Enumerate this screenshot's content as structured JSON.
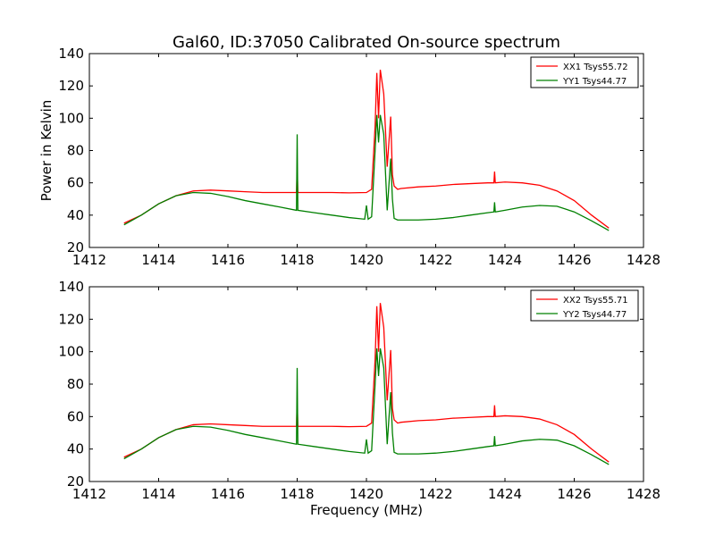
{
  "title": "Gal60, ID:37050 Calibrated On-source spectrum",
  "chart_data": [
    {
      "type": "line",
      "xlabel": "",
      "ylabel": "Power in Kelvin",
      "xlim": [
        1412,
        1428
      ],
      "ylim": [
        20,
        140
      ],
      "xticks": [
        "1412",
        "1414",
        "1416",
        "1418",
        "1420",
        "1422",
        "1424",
        "1426",
        "1428"
      ],
      "yticks": [
        "20",
        "40",
        "60",
        "80",
        "100",
        "120",
        "140"
      ],
      "legend_position": "top-right",
      "series": [
        {
          "name": "XX1 Tsys55.72",
          "color": "#ff0000",
          "points": [
            [
              1413.0,
              35
            ],
            [
              1413.5,
              40
            ],
            [
              1414.0,
              47
            ],
            [
              1414.5,
              52
            ],
            [
              1415.0,
              55
            ],
            [
              1415.5,
              55.5
            ],
            [
              1416.0,
              55
            ],
            [
              1416.5,
              54.5
            ],
            [
              1417.0,
              54
            ],
            [
              1417.5,
              54
            ],
            [
              1417.98,
              54
            ],
            [
              1418.0,
              69
            ],
            [
              1418.02,
              54
            ],
            [
              1418.5,
              54
            ],
            [
              1419.0,
              54
            ],
            [
              1419.5,
              53.8
            ],
            [
              1420.0,
              54
            ],
            [
              1420.15,
              56
            ],
            [
              1420.25,
              95
            ],
            [
              1420.3,
              128
            ],
            [
              1420.35,
              100
            ],
            [
              1420.4,
              130
            ],
            [
              1420.5,
              115
            ],
            [
              1420.6,
              70
            ],
            [
              1420.7,
              101
            ],
            [
              1420.75,
              65
            ],
            [
              1420.8,
              58
            ],
            [
              1420.9,
              56
            ],
            [
              1421.0,
              56.5
            ],
            [
              1421.5,
              57.5
            ],
            [
              1422.0,
              58
            ],
            [
              1422.5,
              59
            ],
            [
              1423.0,
              59.5
            ],
            [
              1423.5,
              60
            ],
            [
              1423.68,
              60
            ],
            [
              1423.7,
              67
            ],
            [
              1423.72,
              60
            ],
            [
              1424.0,
              60.5
            ],
            [
              1424.5,
              60
            ],
            [
              1425.0,
              58.5
            ],
            [
              1425.5,
              55
            ],
            [
              1426.0,
              49
            ],
            [
              1426.5,
              40
            ],
            [
              1427.0,
              32
            ]
          ]
        },
        {
          "name": "YY1 Tsys44.77",
          "color": "#008000",
          "points": [
            [
              1413.0,
              34
            ],
            [
              1413.5,
              40
            ],
            [
              1414.0,
              47
            ],
            [
              1414.5,
              52
            ],
            [
              1415.0,
              54
            ],
            [
              1415.5,
              53.5
            ],
            [
              1416.0,
              51.5
            ],
            [
              1416.5,
              49
            ],
            [
              1417.0,
              47
            ],
            [
              1417.5,
              45
            ],
            [
              1417.98,
              43
            ],
            [
              1418.0,
              90
            ],
            [
              1418.02,
              43
            ],
            [
              1418.5,
              41.5
            ],
            [
              1419.0,
              40
            ],
            [
              1419.5,
              38.5
            ],
            [
              1419.95,
              37.5
            ],
            [
              1420.0,
              46
            ],
            [
              1420.05,
              37.5
            ],
            [
              1420.15,
              39
            ],
            [
              1420.25,
              80
            ],
            [
              1420.3,
              102
            ],
            [
              1420.35,
              85
            ],
            [
              1420.4,
              102
            ],
            [
              1420.5,
              90
            ],
            [
              1420.6,
              43
            ],
            [
              1420.7,
              75
            ],
            [
              1420.75,
              50
            ],
            [
              1420.8,
              38
            ],
            [
              1420.9,
              37
            ],
            [
              1421.0,
              37
            ],
            [
              1421.5,
              37
            ],
            [
              1422.0,
              37.5
            ],
            [
              1422.5,
              38.5
            ],
            [
              1423.0,
              40
            ],
            [
              1423.5,
              41.5
            ],
            [
              1423.68,
              42
            ],
            [
              1423.7,
              48
            ],
            [
              1423.72,
              42
            ],
            [
              1424.0,
              43
            ],
            [
              1424.5,
              45
            ],
            [
              1425.0,
              46
            ],
            [
              1425.5,
              45.5
            ],
            [
              1426.0,
              42
            ],
            [
              1426.5,
              36.5
            ],
            [
              1427.0,
              30.5
            ]
          ]
        }
      ]
    },
    {
      "type": "line",
      "xlabel": "Frequency (MHz)",
      "ylabel": "",
      "xlim": [
        1412,
        1428
      ],
      "ylim": [
        20,
        140
      ],
      "xticks": [
        "1412",
        "1414",
        "1416",
        "1418",
        "1420",
        "1422",
        "1424",
        "1426",
        "1428"
      ],
      "yticks": [
        "20",
        "40",
        "60",
        "80",
        "100",
        "120",
        "140"
      ],
      "legend_position": "top-right",
      "series": [
        {
          "name": "XX2 Tsys55.71",
          "color": "#ff0000",
          "points": [
            [
              1413.0,
              35
            ],
            [
              1413.5,
              40
            ],
            [
              1414.0,
              47
            ],
            [
              1414.5,
              52
            ],
            [
              1415.0,
              55
            ],
            [
              1415.5,
              55.5
            ],
            [
              1416.0,
              55
            ],
            [
              1416.5,
              54.5
            ],
            [
              1417.0,
              54
            ],
            [
              1417.5,
              54
            ],
            [
              1417.98,
              54
            ],
            [
              1418.0,
              69
            ],
            [
              1418.02,
              54
            ],
            [
              1418.5,
              54
            ],
            [
              1419.0,
              54
            ],
            [
              1419.5,
              53.8
            ],
            [
              1420.0,
              54
            ],
            [
              1420.15,
              56
            ],
            [
              1420.25,
              95
            ],
            [
              1420.3,
              128
            ],
            [
              1420.35,
              100
            ],
            [
              1420.4,
              130
            ],
            [
              1420.5,
              115
            ],
            [
              1420.6,
              70
            ],
            [
              1420.7,
              101
            ],
            [
              1420.75,
              65
            ],
            [
              1420.8,
              58
            ],
            [
              1420.9,
              56
            ],
            [
              1421.0,
              56.5
            ],
            [
              1421.5,
              57.5
            ],
            [
              1422.0,
              58
            ],
            [
              1422.5,
              59
            ],
            [
              1423.0,
              59.5
            ],
            [
              1423.5,
              60
            ],
            [
              1423.68,
              60
            ],
            [
              1423.7,
              67
            ],
            [
              1423.72,
              60
            ],
            [
              1424.0,
              60.5
            ],
            [
              1424.5,
              60
            ],
            [
              1425.0,
              58.5
            ],
            [
              1425.5,
              55
            ],
            [
              1426.0,
              49
            ],
            [
              1426.5,
              40
            ],
            [
              1427.0,
              32
            ]
          ]
        },
        {
          "name": "YY2 Tsys44.77",
          "color": "#008000",
          "points": [
            [
              1413.0,
              34
            ],
            [
              1413.5,
              40
            ],
            [
              1414.0,
              47
            ],
            [
              1414.5,
              52
            ],
            [
              1415.0,
              54
            ],
            [
              1415.5,
              53.5
            ],
            [
              1416.0,
              51.5
            ],
            [
              1416.5,
              49
            ],
            [
              1417.0,
              47
            ],
            [
              1417.5,
              45
            ],
            [
              1417.98,
              43
            ],
            [
              1418.0,
              90
            ],
            [
              1418.02,
              43
            ],
            [
              1418.5,
              41.5
            ],
            [
              1419.0,
              40
            ],
            [
              1419.5,
              38.5
            ],
            [
              1419.95,
              37.5
            ],
            [
              1420.0,
              46
            ],
            [
              1420.05,
              37.5
            ],
            [
              1420.15,
              39
            ],
            [
              1420.25,
              80
            ],
            [
              1420.3,
              102
            ],
            [
              1420.35,
              85
            ],
            [
              1420.4,
              102
            ],
            [
              1420.5,
              90
            ],
            [
              1420.6,
              43
            ],
            [
              1420.7,
              75
            ],
            [
              1420.75,
              50
            ],
            [
              1420.8,
              38
            ],
            [
              1420.9,
              37
            ],
            [
              1421.0,
              37
            ],
            [
              1421.5,
              37
            ],
            [
              1422.0,
              37.5
            ],
            [
              1422.5,
              38.5
            ],
            [
              1423.0,
              40
            ],
            [
              1423.5,
              41.5
            ],
            [
              1423.68,
              42
            ],
            [
              1423.7,
              48
            ],
            [
              1423.72,
              42
            ],
            [
              1424.0,
              43
            ],
            [
              1424.5,
              45
            ],
            [
              1425.0,
              46
            ],
            [
              1425.5,
              45.5
            ],
            [
              1426.0,
              42
            ],
            [
              1426.5,
              36.5
            ],
            [
              1427.0,
              30.5
            ]
          ]
        }
      ]
    }
  ]
}
